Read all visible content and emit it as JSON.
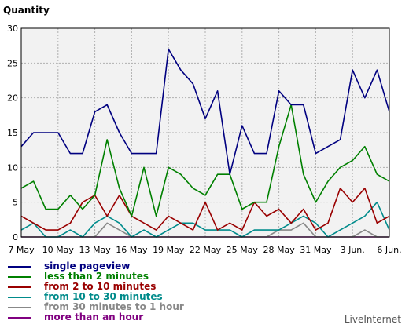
{
  "chart_data": {
    "type": "line",
    "ylabel": "Quantity",
    "ylim": [
      0,
      30
    ],
    "y_ticks": [
      0,
      5,
      10,
      15,
      20,
      25,
      30
    ],
    "x": [
      "7 May",
      "8 May",
      "9 May",
      "10 May",
      "11 May",
      "12 May",
      "13 May",
      "14 May",
      "15 May",
      "16 May",
      "17 May",
      "18 May",
      "19 May",
      "20 May",
      "21 May",
      "22 May",
      "23 May",
      "24 May",
      "25 May",
      "26 May",
      "27 May",
      "28 May",
      "29 May",
      "30 May",
      "31 May",
      "1 Jun.",
      "2 Jun.",
      "3 Jun.",
      "4 Jun.",
      "5 Jun.",
      "6 Jun."
    ],
    "x_tick_labels": [
      "7 May",
      "10 May",
      "13 May",
      "16 May",
      "19 May",
      "22 May",
      "25 May",
      "28 May",
      "31 May",
      "3 Jun.",
      "6 Jun."
    ],
    "grid": true,
    "series": [
      {
        "name": "single pageview",
        "color": "#000080",
        "values": [
          13,
          15,
          15,
          15,
          12,
          12,
          18,
          19,
          15,
          12,
          12,
          12,
          27,
          24,
          22,
          17,
          21,
          9,
          16,
          12,
          12,
          21,
          19,
          19,
          12,
          13,
          14,
          24,
          20,
          24,
          18
        ]
      },
      {
        "name": "less than 2 minutes",
        "color": "#008000",
        "values": [
          7,
          8,
          4,
          4,
          6,
          4,
          6,
          14,
          7,
          3,
          10,
          3,
          10,
          9,
          7,
          6,
          9,
          9,
          4,
          5,
          5,
          13,
          19,
          9,
          5,
          8,
          10,
          11,
          13,
          9,
          8
        ]
      },
      {
        "name": "from 2 to 10 minutes",
        "color": "#990000",
        "values": [
          3,
          2,
          1,
          1,
          2,
          5,
          6,
          3,
          6,
          3,
          2,
          1,
          3,
          2,
          1,
          5,
          1,
          2,
          1,
          5,
          3,
          4,
          2,
          4,
          1,
          2,
          7,
          5,
          7,
          2,
          3
        ]
      },
      {
        "name": "from 10 to 30 minutes",
        "color": "#008B8B",
        "values": [
          1,
          2,
          0,
          0,
          1,
          0,
          2,
          3,
          2,
          0,
          1,
          0,
          1,
          2,
          2,
          1,
          1,
          1,
          0,
          1,
          1,
          1,
          2,
          3,
          2,
          0,
          1,
          2,
          3,
          5,
          1
        ]
      },
      {
        "name": "from 30 minutes to 1 hour",
        "color": "#888888",
        "values": [
          0,
          0,
          0,
          0,
          0,
          0,
          0,
          2,
          1,
          0,
          0,
          0,
          0,
          0,
          0,
          0,
          0,
          0,
          0,
          0,
          0,
          1,
          1,
          2,
          0,
          0,
          0,
          0,
          1,
          0,
          0
        ]
      },
      {
        "name": "more than an hour",
        "color": "#800080",
        "values": [
          0,
          0,
          0,
          0,
          0,
          0,
          0,
          0,
          0,
          0,
          0,
          0,
          0,
          0,
          0,
          0,
          0,
          0,
          0,
          0,
          0,
          0,
          0,
          0,
          0,
          0,
          0,
          0,
          0,
          0,
          0
        ]
      }
    ]
  },
  "brand": "LiveInternet"
}
